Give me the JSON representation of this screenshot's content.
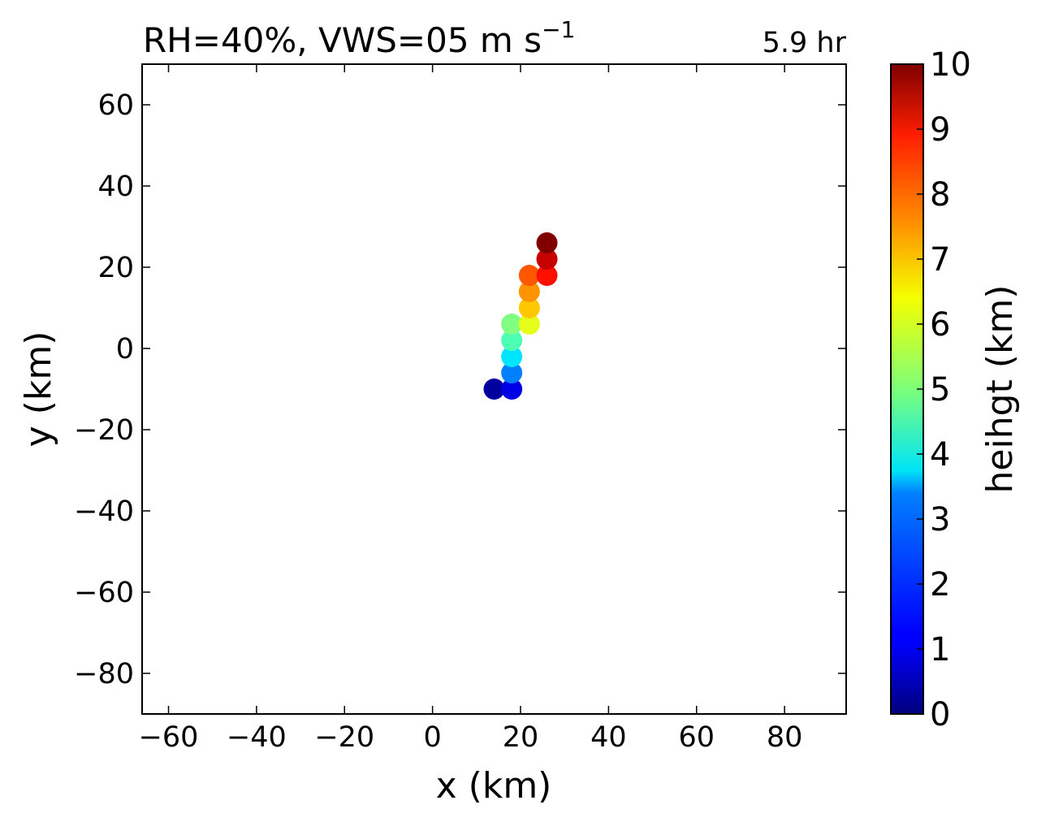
{
  "chart_data": {
    "type": "scatter",
    "title_text": "RH=40%, VWS=05 m s",
    "title_superscript": "−1",
    "annotation": "5.9 hr",
    "annotation_color": "#0000ff",
    "xlabel": "x (km)",
    "ylabel": "y (km)",
    "xlim": [
      -66,
      94
    ],
    "ylim": [
      -90,
      70
    ],
    "xticks": [
      -60,
      -40,
      -20,
      0,
      20,
      40,
      60,
      80
    ],
    "yticks": [
      -80,
      -60,
      -40,
      -20,
      0,
      20,
      40,
      60
    ],
    "xtick_labels": [
      "−60",
      "−40",
      "−20",
      "0",
      "20",
      "40",
      "60",
      "80"
    ],
    "ytick_labels": [
      "−80",
      "−60",
      "−40",
      "−20",
      "0",
      "20",
      "40",
      "60"
    ],
    "colormap": "jet",
    "points": [
      {
        "x": 14,
        "y": -10,
        "height": 0.3
      },
      {
        "x": 18,
        "y": -10,
        "height": 1.0
      },
      {
        "x": 18,
        "y": -6,
        "height": 2.5
      },
      {
        "x": 18,
        "y": -2,
        "height": 3.5
      },
      {
        "x": 18,
        "y": 2,
        "height": 4.5
      },
      {
        "x": 18,
        "y": 6,
        "height": 5.0
      },
      {
        "x": 22,
        "y": 6,
        "height": 6.0
      },
      {
        "x": 22,
        "y": 10,
        "height": 6.8
      },
      {
        "x": 22,
        "y": 14,
        "height": 7.3
      },
      {
        "x": 22,
        "y": 18,
        "height": 7.9
      },
      {
        "x": 26,
        "y": 18,
        "height": 8.6
      },
      {
        "x": 26,
        "y": 22,
        "height": 9.3
      },
      {
        "x": 26,
        "y": 26,
        "height": 10.0
      }
    ],
    "colorbar": {
      "label": "heihgt (km)",
      "range": [
        0,
        10
      ],
      "ticks": [
        0,
        1,
        2,
        3,
        4,
        5,
        6,
        7,
        8,
        9,
        10
      ],
      "tick_labels": [
        "0",
        "1",
        "2",
        "3",
        "4",
        "5",
        "6",
        "7",
        "8",
        "9",
        "10"
      ]
    }
  }
}
